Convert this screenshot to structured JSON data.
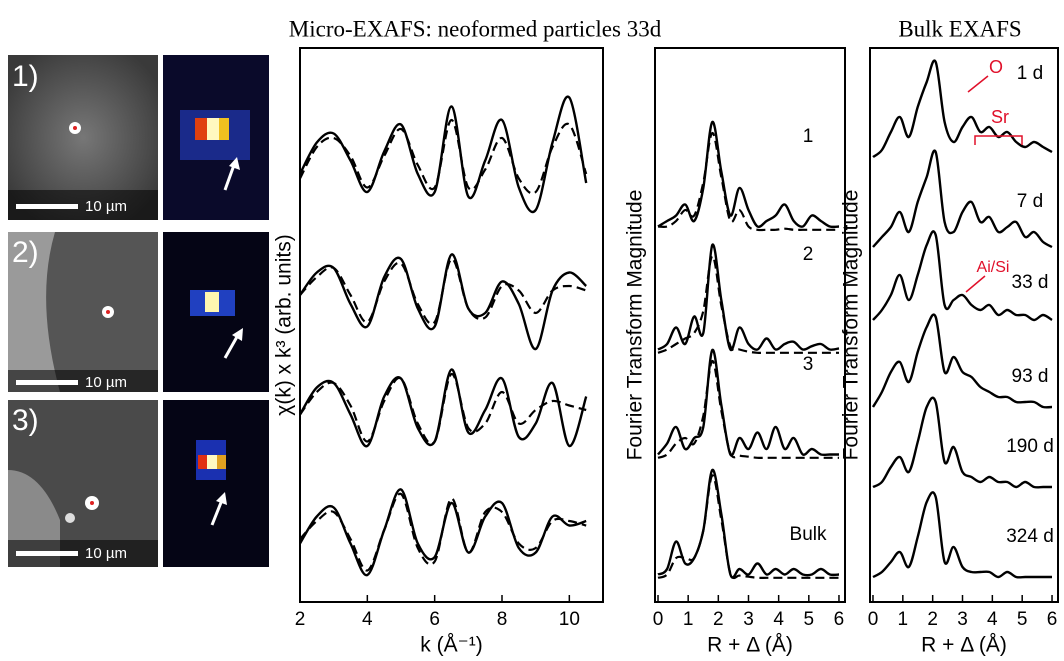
{
  "title": "Micro-EXAFS: neoformed particles 33d",
  "bulk_title": "Bulk EXAFS",
  "images": [
    {
      "label": "1)",
      "scale": "10 µm"
    },
    {
      "label": "2)",
      "scale": "10 µm"
    },
    {
      "label": "3)",
      "scale": "10 µm"
    }
  ],
  "chart_data": [
    {
      "type": "line",
      "xlabel": "k (Å⁻¹)",
      "ylabel": "χ(k) x k³ (arb. units)",
      "xlim": [
        2,
        11
      ],
      "xticks": [
        2,
        4,
        6,
        8,
        10
      ],
      "x": [
        2,
        2.5,
        3,
        3.5,
        4,
        4.5,
        5,
        5.5,
        6,
        6.5,
        7,
        7.5,
        8,
        8.5,
        9,
        9.5,
        10,
        10.5
      ],
      "series": [
        {
          "values": [
            -0.2,
            0.5,
            0.7,
            0.1,
            -0.6,
            0.3,
            0.9,
            -0.2,
            -0.6,
            1.3,
            -0.7,
            0.1,
            1.0,
            -0.5,
            -1.0,
            0.5,
            1.5,
            -0.4
          ],
          "fit": [
            -0.3,
            0.4,
            0.6,
            0.2,
            -0.5,
            0.2,
            0.8,
            0.0,
            -0.5,
            1.0,
            -0.5,
            -0.1,
            0.6,
            -0.3,
            -0.6,
            0.4,
            0.9,
            -0.2
          ]
        },
        {
          "values": [
            0.0,
            0.5,
            0.6,
            -0.2,
            -0.7,
            0.4,
            0.8,
            -0.3,
            -0.7,
            0.9,
            -0.3,
            -0.4,
            0.3,
            -0.2,
            -1.2,
            0.1,
            0.5,
            0.2
          ],
          "fit": [
            0.0,
            0.4,
            0.6,
            0.0,
            -0.6,
            0.3,
            0.7,
            -0.2,
            -0.6,
            0.8,
            -0.3,
            -0.5,
            0.2,
            0.1,
            -0.4,
            0.1,
            0.2,
            0.1
          ]
        },
        {
          "values": [
            -0.1,
            0.5,
            0.6,
            -0.1,
            -0.8,
            0.3,
            0.7,
            -0.4,
            -0.7,
            0.9,
            -0.5,
            0.0,
            0.7,
            -0.6,
            -0.3,
            0.6,
            -0.8,
            0.3
          ],
          "fit": [
            -0.1,
            0.4,
            0.6,
            0.1,
            -0.7,
            0.2,
            0.7,
            -0.3,
            -0.7,
            0.8,
            -0.4,
            -0.3,
            0.4,
            -0.3,
            0.0,
            0.2,
            0.1,
            0.0
          ]
        },
        {
          "values": [
            -0.3,
            0.3,
            0.5,
            -0.3,
            -1.0,
            0.0,
            0.9,
            -0.3,
            -0.6,
            0.6,
            -0.5,
            0.3,
            0.6,
            -0.4,
            -0.5,
            0.3,
            0.1,
            0.2
          ],
          "fit": [
            -0.2,
            0.2,
            0.4,
            -0.2,
            -0.9,
            0.0,
            0.8,
            -0.4,
            -0.7,
            0.7,
            -0.5,
            0.4,
            0.4,
            -0.3,
            -0.4,
            0.2,
            0.2,
            0.1
          ]
        }
      ]
    },
    {
      "type": "line",
      "xlabel": "R + Δ (Å)",
      "ylabel": "Fourier Transform Magnitude",
      "xlim": [
        -0.1,
        6.2
      ],
      "xticks": [
        0,
        1,
        2,
        3,
        4,
        5,
        6
      ],
      "x": [
        0,
        0.3,
        0.6,
        0.9,
        1.2,
        1.5,
        1.8,
        2.1,
        2.4,
        2.7,
        3.0,
        3.3,
        3.6,
        3.9,
        4.2,
        4.5,
        4.8,
        5.1,
        5.4,
        5.7,
        6.0
      ],
      "series": [
        {
          "name": "1",
          "values": [
            0.05,
            0.1,
            0.15,
            0.25,
            0.1,
            0.4,
            1.0,
            0.55,
            0.15,
            0.4,
            0.2,
            0.05,
            0.1,
            0.15,
            0.25,
            0.1,
            0.05,
            0.15,
            0.1,
            0.05,
            0.05
          ],
          "fit": [
            0.05,
            0.05,
            0.1,
            0.2,
            0.15,
            0.45,
            0.9,
            0.5,
            0.1,
            0.2,
            0.05,
            0.02,
            0.02,
            0.02,
            0.03,
            0.02,
            0.02,
            0.02,
            0.02,
            0.02,
            0.02
          ]
        },
        {
          "name": "2",
          "values": [
            0.05,
            0.1,
            0.25,
            0.1,
            0.35,
            0.2,
            1.0,
            0.5,
            0.05,
            0.25,
            0.1,
            0.05,
            0.15,
            0.05,
            0.1,
            0.12,
            0.05,
            0.08,
            0.1,
            0.05,
            0.06
          ],
          "fit": [
            0.02,
            0.05,
            0.1,
            0.15,
            0.2,
            0.4,
            0.9,
            0.45,
            0.08,
            0.05,
            0.03,
            0.02,
            0.02,
            0.02,
            0.02,
            0.02,
            0.02,
            0.02,
            0.02,
            0.02,
            0.02
          ]
        },
        {
          "name": "3",
          "values": [
            0.05,
            0.15,
            0.3,
            0.1,
            0.2,
            0.3,
            1.0,
            0.5,
            0.05,
            0.2,
            0.1,
            0.25,
            0.1,
            0.3,
            0.1,
            0.2,
            0.05,
            0.1,
            0.05,
            0.05,
            0.05
          ],
          "fit": [
            0.02,
            0.05,
            0.15,
            0.2,
            0.15,
            0.4,
            0.9,
            0.45,
            0.06,
            0.04,
            0.03,
            0.02,
            0.02,
            0.02,
            0.02,
            0.02,
            0.02,
            0.02,
            0.02,
            0.02,
            0.02
          ]
        },
        {
          "name": "Bulk",
          "values": [
            0.05,
            0.1,
            0.35,
            0.15,
            0.2,
            0.45,
            1.0,
            0.6,
            0.05,
            0.1,
            0.05,
            0.15,
            0.05,
            0.1,
            0.05,
            0.1,
            0.05,
            0.05,
            0.1,
            0.05,
            0.05
          ],
          "fit": [
            0.02,
            0.05,
            0.2,
            0.2,
            0.2,
            0.45,
            0.95,
            0.55,
            0.06,
            0.04,
            0.03,
            0.02,
            0.02,
            0.02,
            0.02,
            0.02,
            0.02,
            0.02,
            0.02,
            0.02,
            0.02
          ]
        }
      ]
    },
    {
      "type": "line",
      "xlabel": "R + Δ (Å)",
      "ylabel": "Fourier Transform Magnitude",
      "xlim": [
        -0.1,
        6.2
      ],
      "xticks": [
        0,
        1,
        2,
        3,
        4,
        5,
        6
      ],
      "x": [
        0,
        0.3,
        0.6,
        0.9,
        1.2,
        1.5,
        1.8,
        2.1,
        2.4,
        2.7,
        3.0,
        3.3,
        3.6,
        3.9,
        4.2,
        4.5,
        4.8,
        5.1,
        5.4,
        5.7,
        6.0
      ],
      "annotations": [
        {
          "text": "O",
          "color": "#e0102a"
        },
        {
          "text": "Sr",
          "color": "#e0102a"
        },
        {
          "text": "Ai/Si",
          "color": "#e0102a"
        }
      ],
      "series": [
        {
          "name": "1 d",
          "values": [
            0.05,
            0.12,
            0.3,
            0.45,
            0.25,
            0.55,
            0.8,
            1.0,
            0.4,
            0.2,
            0.35,
            0.45,
            0.3,
            0.35,
            0.25,
            0.3,
            0.2,
            0.15,
            0.2,
            0.15,
            0.1
          ]
        },
        {
          "name": "7 d",
          "values": [
            0.05,
            0.15,
            0.25,
            0.4,
            0.2,
            0.5,
            0.75,
            1.0,
            0.3,
            0.2,
            0.4,
            0.5,
            0.3,
            0.35,
            0.2,
            0.25,
            0.3,
            0.15,
            0.2,
            0.1,
            0.05
          ]
        },
        {
          "name": "33 d",
          "values": [
            0.05,
            0.15,
            0.3,
            0.5,
            0.25,
            0.5,
            0.8,
            0.9,
            0.2,
            0.25,
            0.3,
            0.2,
            0.15,
            0.2,
            0.1,
            0.15,
            0.1,
            0.1,
            0.05,
            0.1,
            0.05
          ]
        },
        {
          "name": "93 d",
          "values": [
            0.05,
            0.2,
            0.4,
            0.5,
            0.3,
            0.6,
            0.85,
            0.95,
            0.4,
            0.55,
            0.4,
            0.35,
            0.25,
            0.2,
            0.15,
            0.15,
            0.1,
            0.1,
            0.1,
            0.05,
            0.05
          ]
        },
        {
          "name": "190 d",
          "values": [
            0.05,
            0.1,
            0.25,
            0.35,
            0.2,
            0.5,
            0.85,
            0.9,
            0.3,
            0.45,
            0.2,
            0.15,
            0.1,
            0.15,
            0.1,
            0.1,
            0.05,
            0.1,
            0.05,
            0.05,
            0.05
          ]
        },
        {
          "name": "324 d",
          "values": [
            0.05,
            0.1,
            0.2,
            0.3,
            0.15,
            0.45,
            0.8,
            0.85,
            0.2,
            0.35,
            0.15,
            0.1,
            0.1,
            0.1,
            0.05,
            0.1,
            0.05,
            0.05,
            0.05,
            0.05,
            0.05
          ]
        }
      ]
    }
  ]
}
